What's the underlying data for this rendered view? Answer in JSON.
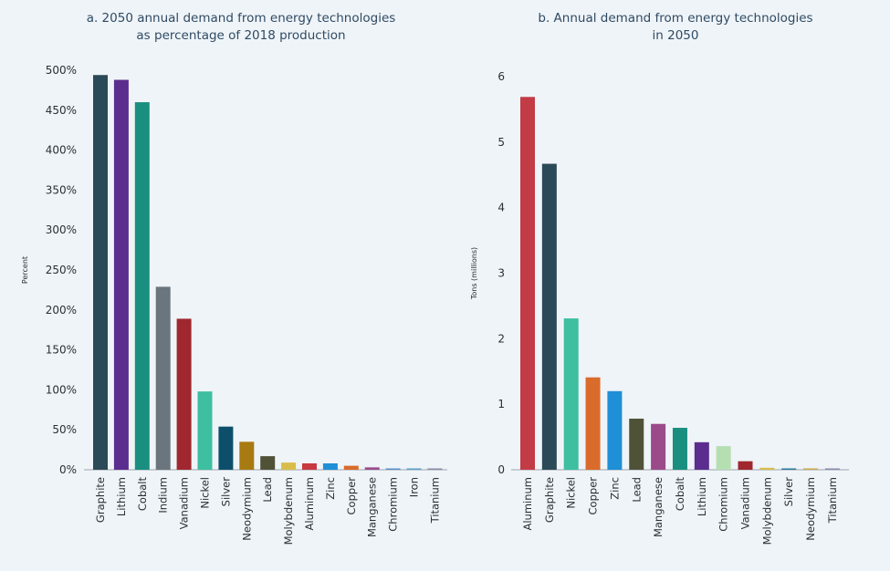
{
  "chart_data": [
    {
      "type": "bar",
      "title": [
        "a. 2050 annual demand from energy technologies",
        "as percentage of 2018 production"
      ],
      "xlabel": "",
      "ylabel": "Percent",
      "ylim": [
        0,
        500
      ],
      "yticks": [
        0,
        50,
        100,
        150,
        200,
        250,
        300,
        350,
        400,
        450,
        500
      ],
      "ytick_labels": [
        "0%",
        "50%",
        "100%",
        "150%",
        "200%",
        "250%",
        "300%",
        "350%",
        "400%",
        "450%",
        "500%"
      ],
      "grid": false,
      "categories": [
        "Graphite",
        "Lithium",
        "Cobalt",
        "Indium",
        "Vanadium",
        "Nickel",
        "Silver",
        "Neodymium",
        "Lead",
        "Molybdenum",
        "Aluminum",
        "Zinc",
        "Copper",
        "Manganese",
        "Chromium",
        "Iron",
        "Titanium"
      ],
      "values": [
        494,
        488,
        460,
        229,
        189,
        98,
        54,
        35,
        17,
        9,
        8,
        8,
        5,
        3,
        1,
        1,
        1
      ],
      "colors": [
        "#2b4a57",
        "#5b2d8e",
        "#1a8f80",
        "#6b757e",
        "#a0272f",
        "#3dbfa0",
        "#0d4f6b",
        "#a87a12",
        "#4f5237",
        "#d9bd4a",
        "#c9373f",
        "#1f8fd6",
        "#d96b2b",
        "#9b4a8a",
        "#5a8fc9",
        "#5aa0c9",
        "#8a8aa8"
      ]
    },
    {
      "type": "bar",
      "title": [
        "b. Annual demand from energy technologies",
        "in 2050"
      ],
      "xlabel": "",
      "ylabel": "Tons (millions)",
      "ylim": [
        0,
        6
      ],
      "yticks": [
        0,
        1,
        2,
        3,
        4,
        5,
        6
      ],
      "ytick_labels": [
        "0",
        "1",
        "2",
        "3",
        "4",
        "5",
        "6"
      ],
      "grid": false,
      "categories": [
        "Aluminum",
        "Graphite",
        "Nickel",
        "Copper",
        "Zinc",
        "Lead",
        "Manganese",
        "Cobalt",
        "Lithium",
        "Chromium",
        "Vanadium",
        "Molybdenum",
        "Silver",
        "Neodymium",
        "Titanium"
      ],
      "values": [
        5.69,
        4.67,
        2.31,
        1.41,
        1.2,
        0.78,
        0.7,
        0.64,
        0.42,
        0.36,
        0.13,
        0.03,
        0.02,
        0.02,
        0.01
      ],
      "colors": [
        "#c23b45",
        "#2b4a57",
        "#3dbfa0",
        "#d96b2b",
        "#1f8fd6",
        "#4f5237",
        "#9b4a8a",
        "#1a8f80",
        "#5b2d8e",
        "#b5dfb0",
        "#a0272f",
        "#d9bd4a",
        "#2a7a9a",
        "#c9a94a",
        "#8a8aa8"
      ]
    }
  ]
}
